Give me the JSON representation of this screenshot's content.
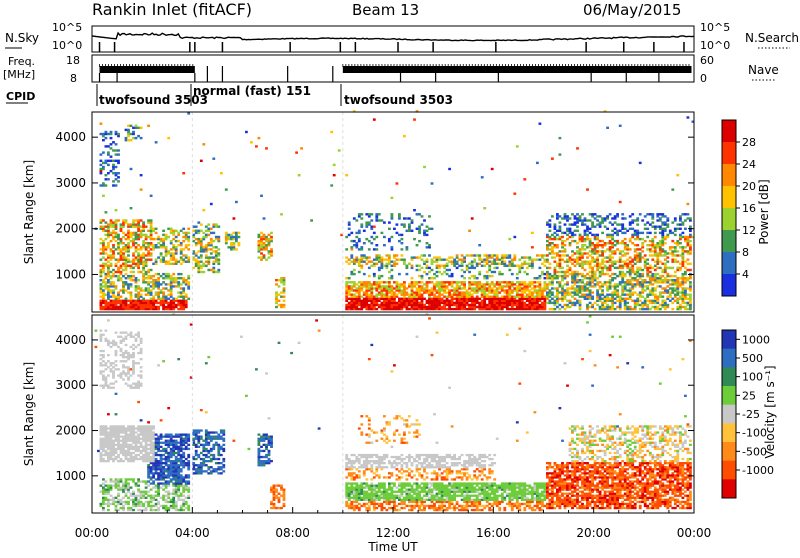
{
  "header": {
    "station": "Rankin Inlet (fitACF)",
    "beam": "Beam 13",
    "date": "06/May/2015"
  },
  "top_panels": {
    "nsky_label": "N.Sky",
    "nsearch_label": "N.Search",
    "nsky_ticks": [
      "10^5",
      "10^0"
    ],
    "freq_label": "Freq.",
    "freq_unit": "[MHz]",
    "freq_ticks": [
      "18",
      "8"
    ],
    "nave_label": "Nave",
    "nave_ticks": [
      "60",
      "0"
    ],
    "cpid_label": "CPID",
    "cpid_segments": [
      {
        "label": "twofsound 3503",
        "start_hour": 0.0,
        "end_hour": 4.0
      },
      {
        "label": "normal (fast) 151",
        "start_hour": 4.0,
        "end_hour": 10.0
      },
      {
        "label": "twofsound 3503",
        "start_hour": 10.0,
        "end_hour": 24.0
      }
    ]
  },
  "chart_data": [
    {
      "type": "heatmap",
      "name": "power",
      "ylabel": "Slant Range [km]",
      "xlabel": "",
      "xlim_hours": [
        0,
        24
      ],
      "ylim_km": [
        180,
        4550
      ],
      "yticks": [
        1000,
        2000,
        3000,
        4000
      ],
      "colorbar_label": "Power [dB]",
      "colorbar_ticks": [
        "28",
        "24",
        "20",
        "16",
        "12",
        "8",
        "4"
      ],
      "colorbar_colors": [
        "#dd0000",
        "#ff3300",
        "#ff8800",
        "#ffc200",
        "#9bd230",
        "#3f9a50",
        "#2e6ec0",
        "#1a2fe0"
      ]
    },
    {
      "type": "heatmap",
      "name": "velocity",
      "ylabel": "Slant Range [km]",
      "xlabel": "Time UT",
      "xlim_hours": [
        0,
        24
      ],
      "ylim_km": [
        180,
        4550
      ],
      "yticks": [
        1000,
        2000,
        3000,
        4000
      ],
      "xticks": [
        "00:00",
        "04:00",
        "08:00",
        "12:00",
        "16:00",
        "20:00",
        "00:00"
      ],
      "colorbar_label": "Velocity [m s⁻¹]",
      "colorbar_ticks": [
        "1000",
        "500",
        "100",
        "25",
        "-25",
        "-100",
        "-500",
        "-1000"
      ],
      "colorbar_colors": [
        "#2235b5",
        "#2e6ec0",
        "#2f8a55",
        "#6dcc3a",
        "#c8c8c8",
        "#ffc23a",
        "#ff8a1a",
        "#ff4d00",
        "#e00000"
      ]
    }
  ]
}
